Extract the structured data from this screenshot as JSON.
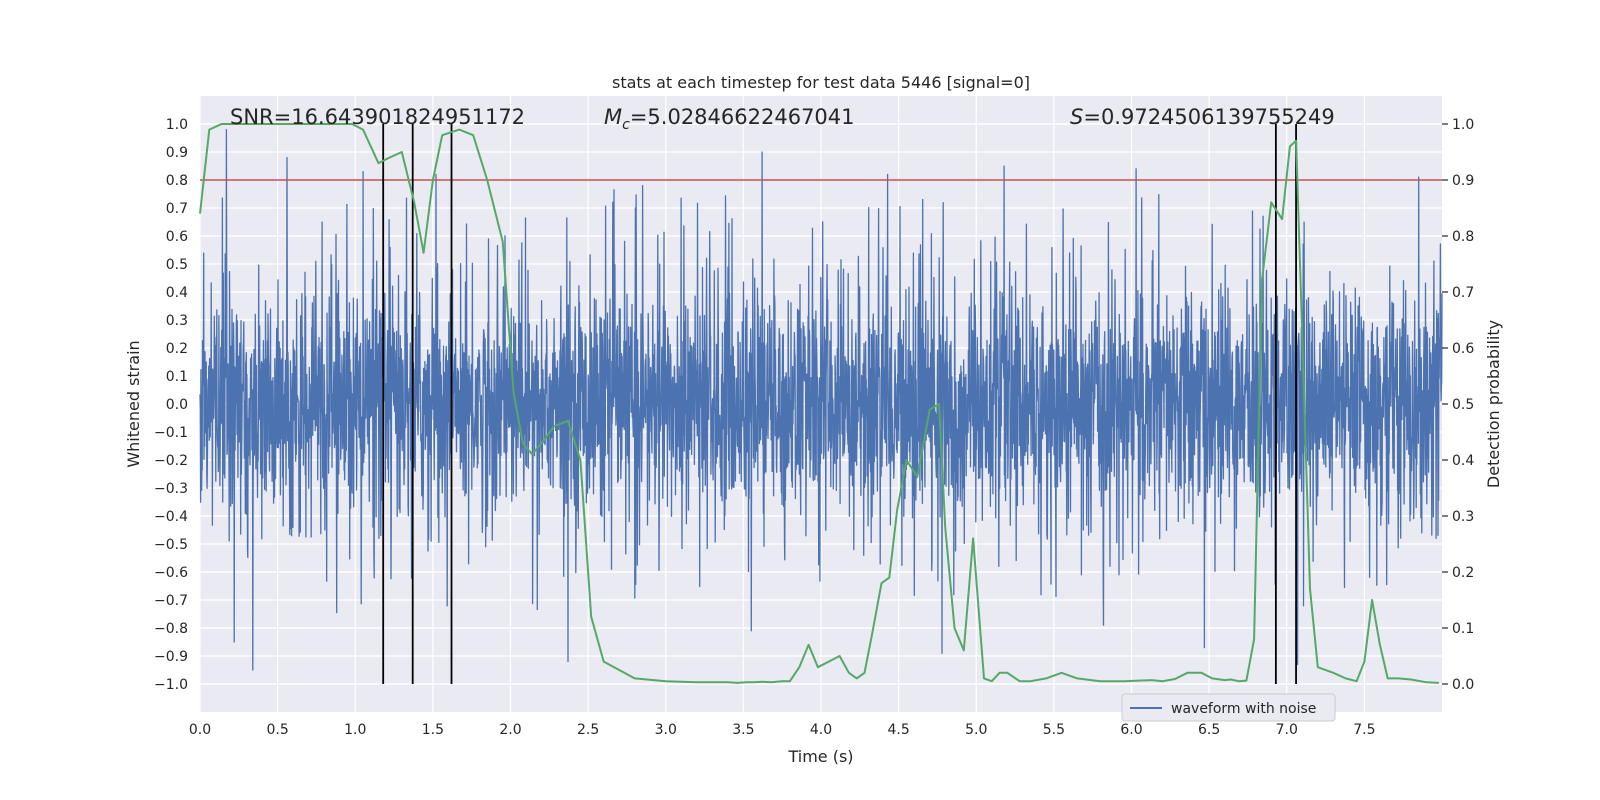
{
  "chart_data": {
    "type": "line",
    "title": "stats at each timestep for test data 5446 [signal=0]",
    "xlabel": "Time (s)",
    "ylabel_left": "Whitened strain",
    "ylabel_right": "Detection probability",
    "xlim": [
      0.0,
      8.0
    ],
    "ylim_left": [
      -1.1,
      1.1
    ],
    "ylim_right": [
      -0.05,
      1.05
    ],
    "x_ticks": [
      0.0,
      0.5,
      1.0,
      1.5,
      2.0,
      2.5,
      3.0,
      3.5,
      4.0,
      4.5,
      5.0,
      5.5,
      6.0,
      6.5,
      7.0,
      7.5
    ],
    "x_tick_labels": [
      "0.0",
      "0.5",
      "1.0",
      "1.5",
      "2.0",
      "2.5",
      "3.0",
      "3.5",
      "4.0",
      "4.5",
      "5.0",
      "5.5",
      "6.0",
      "6.5",
      "7.0",
      "7.5"
    ],
    "y_left_ticks": [
      1.0,
      0.9,
      0.8,
      0.7,
      0.6,
      0.5,
      0.4,
      0.3,
      0.2,
      0.1,
      0.0,
      -0.1,
      -0.2,
      -0.3,
      -0.4,
      -0.5,
      -0.6,
      -0.7,
      -0.8,
      -0.9,
      -1.0
    ],
    "y_left_tick_labels": [
      "1.0",
      "0.9",
      "0.8",
      "0.7",
      "0.6",
      "0.5",
      "0.4",
      "0.3",
      "0.2",
      "0.1",
      "0.0",
      "−0.1",
      "−0.2",
      "−0.3",
      "−0.4",
      "−0.5",
      "−0.6",
      "−0.7",
      "−0.8",
      "−0.9",
      "−1.0"
    ],
    "y_right_ticks": [
      1.0,
      0.9,
      0.8,
      0.7,
      0.6,
      0.5,
      0.4,
      0.3,
      0.2,
      0.1,
      0.0
    ],
    "y_right_tick_labels": [
      "1.0",
      "0.9",
      "0.8",
      "0.7",
      "0.6",
      "0.5",
      "0.4",
      "0.3",
      "0.2",
      "0.1",
      "0.0"
    ],
    "grid": true,
    "legend": {
      "placement": "lower-right",
      "entries": [
        {
          "label": "waveform with noise",
          "color": "#4c72b0"
        }
      ]
    },
    "annotations": {
      "snr": "SNR=16.643901824951172",
      "mc_symbol": "M",
      "mc_subscript": "c",
      "mc_value": "=5.02846622467041",
      "s_symbol": "S",
      "s_value": "=0.9724506139755249"
    },
    "threshold": {
      "axis": "right",
      "value": 0.9,
      "color": "#c44e52"
    },
    "vertical_lines": {
      "x": [
        1.18,
        1.37,
        1.62,
        6.93,
        7.06
      ],
      "color": "#000000",
      "ymin_right": 0.0,
      "ymax_right": 1.0
    },
    "series": [
      {
        "name": "waveform with noise",
        "axis": "left",
        "color": "#4c72b0",
        "kind": "dense-noise",
        "n_samples": 4000,
        "envelope_typical": 0.42,
        "spikes": [
          {
            "x": 0.17,
            "y": 0.98
          },
          {
            "x": 0.34,
            "y": -0.95
          },
          {
            "x": 0.56,
            "y": 0.88
          },
          {
            "x": 1.05,
            "y": 0.83
          },
          {
            "x": 1.52,
            "y": 0.82
          },
          {
            "x": 2.37,
            "y": -0.92
          },
          {
            "x": 3.62,
            "y": 0.9
          },
          {
            "x": 3.55,
            "y": -0.81
          },
          {
            "x": 4.43,
            "y": 0.82
          },
          {
            "x": 4.78,
            "y": -0.89
          },
          {
            "x": 5.18,
            "y": 0.85
          },
          {
            "x": 6.03,
            "y": 0.84
          },
          {
            "x": 6.47,
            "y": -0.87
          },
          {
            "x": 7.07,
            "y": -0.93
          },
          {
            "x": 7.85,
            "y": 0.81
          },
          {
            "x": 0.22,
            "y": -0.85
          },
          {
            "x": 2.85,
            "y": 0.78
          },
          {
            "x": 5.82,
            "y": -0.79
          }
        ]
      },
      {
        "name": "detection probability",
        "axis": "right",
        "color": "#55a868",
        "x": [
          0.0,
          0.06,
          0.14,
          0.22,
          0.3,
          0.5,
          0.7,
          0.9,
          0.98,
          1.05,
          1.15,
          1.22,
          1.3,
          1.38,
          1.44,
          1.5,
          1.56,
          1.67,
          1.76,
          1.85,
          1.95,
          2.02,
          2.08,
          2.14,
          2.2,
          2.28,
          2.37,
          2.45,
          2.52,
          2.6,
          2.8,
          3.0,
          3.2,
          3.4,
          3.46,
          3.52,
          3.57,
          3.62,
          3.68,
          3.75,
          3.8,
          3.86,
          3.92,
          3.98,
          4.05,
          4.12,
          4.18,
          4.23,
          4.28,
          4.33,
          4.39,
          4.44,
          4.49,
          4.55,
          4.62,
          4.7,
          4.76,
          4.8,
          4.86,
          4.92,
          4.98,
          5.05,
          5.1,
          5.15,
          5.2,
          5.28,
          5.35,
          5.45,
          5.55,
          5.65,
          5.8,
          5.95,
          6.05,
          6.13,
          6.2,
          6.28,
          6.36,
          6.45,
          6.52,
          6.6,
          6.64,
          6.69,
          6.74,
          6.79,
          6.84,
          6.9,
          6.97,
          7.02,
          7.06,
          7.1,
          7.15,
          7.2,
          7.3,
          7.38,
          7.45,
          7.5,
          7.55,
          7.6,
          7.65,
          7.72,
          7.8,
          7.9,
          7.98
        ],
        "y": [
          0.84,
          0.99,
          1.0,
          1.0,
          1.0,
          1.0,
          1.0,
          1.0,
          1.0,
          0.99,
          0.93,
          0.94,
          0.95,
          0.86,
          0.77,
          0.9,
          0.98,
          0.99,
          0.98,
          0.9,
          0.79,
          0.52,
          0.43,
          0.41,
          0.43,
          0.46,
          0.47,
          0.4,
          0.12,
          0.04,
          0.01,
          0.005,
          0.003,
          0.003,
          0.002,
          0.003,
          0.003,
          0.004,
          0.003,
          0.005,
          0.005,
          0.03,
          0.07,
          0.03,
          0.04,
          0.05,
          0.02,
          0.01,
          0.02,
          0.09,
          0.18,
          0.19,
          0.31,
          0.4,
          0.37,
          0.49,
          0.5,
          0.28,
          0.1,
          0.06,
          0.26,
          0.01,
          0.005,
          0.02,
          0.02,
          0.005,
          0.005,
          0.01,
          0.02,
          0.01,
          0.005,
          0.005,
          0.006,
          0.007,
          0.005,
          0.009,
          0.02,
          0.02,
          0.01,
          0.007,
          0.008,
          0.005,
          0.006,
          0.08,
          0.72,
          0.86,
          0.83,
          0.96,
          0.97,
          0.62,
          0.17,
          0.03,
          0.02,
          0.01,
          0.005,
          0.04,
          0.15,
          0.07,
          0.01,
          0.01,
          0.008,
          0.003,
          0.002
        ]
      }
    ]
  }
}
